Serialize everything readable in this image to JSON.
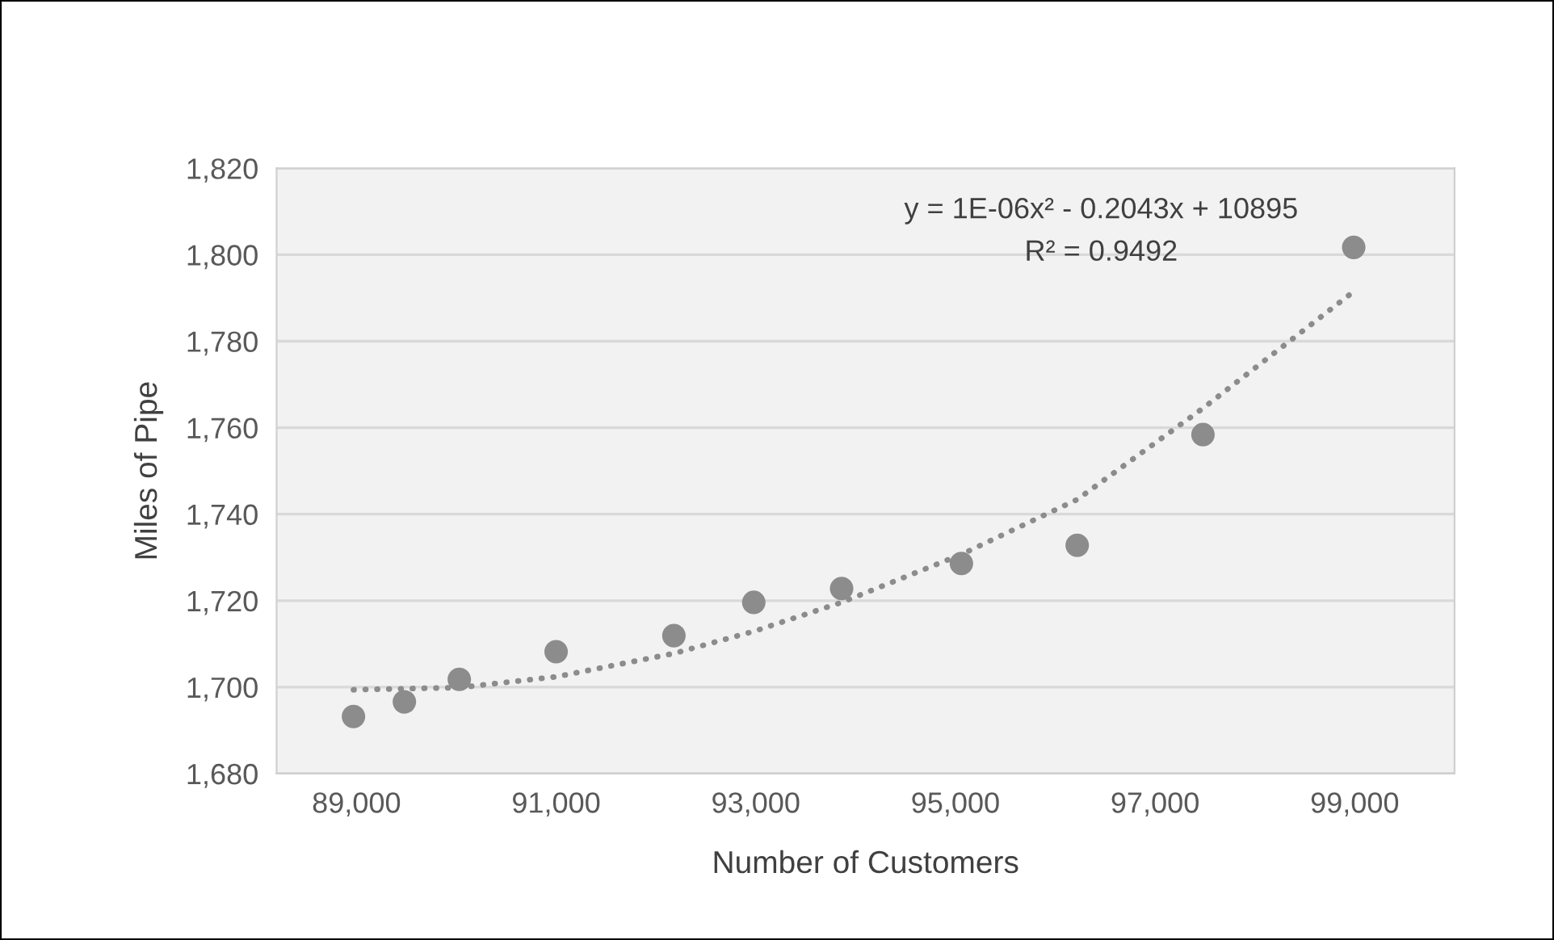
{
  "chart_data": {
    "type": "scatter",
    "xlabel": "Number of Customers",
    "ylabel": "Miles of Pipe",
    "xlim": [
      88200,
      100000
    ],
    "xticks": [
      {
        "value": 89000,
        "label": "89,000"
      },
      {
        "value": 91000,
        "label": "91,000"
      },
      {
        "value": 93000,
        "label": "93,000"
      },
      {
        "value": 95000,
        "label": "95,000"
      },
      {
        "value": 97000,
        "label": "97,000"
      },
      {
        "value": 99000,
        "label": "99,000"
      }
    ],
    "ylim": [
      1680,
      1820
    ],
    "yticks": [
      {
        "value": 1680,
        "label": "1,680"
      },
      {
        "value": 1700,
        "label": "1,700"
      },
      {
        "value": 1720,
        "label": "1,720"
      },
      {
        "value": 1740,
        "label": "1,740"
      },
      {
        "value": 1760,
        "label": "1,760"
      },
      {
        "value": 1780,
        "label": "1,780"
      },
      {
        "value": 1800,
        "label": "1,800"
      },
      {
        "value": 1820,
        "label": "1,820"
      }
    ],
    "grid": "y",
    "series": [
      {
        "color": "#8c8c8c",
        "marker": "circle",
        "x": [
          88970,
          89480,
          90030,
          91000,
          92180,
          92980,
          93860,
          95060,
          96220,
          97480,
          98990
        ],
        "values": [
          1693.2,
          1696.6,
          1701.8,
          1708.2,
          1711.9,
          1719.6,
          1722.8,
          1728.6,
          1732.8,
          1758.4,
          1801.7
        ]
      },
      {
        "type": "line",
        "color": "#8c8c8c",
        "line_style": "dotted",
        "marker": "none",
        "x": [
          88970,
          90030,
          91000,
          92180,
          92980,
          93860,
          95060,
          96220,
          97480,
          98990
        ],
        "values": [
          1699.4,
          1699.9,
          1702.4,
          1707.8,
          1712.9,
          1719.6,
          1730.7,
          1743.4,
          1764.5,
          1791.5
        ]
      }
    ],
    "annotations": [
      "y = 1E-06x² - 0.2043x + 10895",
      "R² = 0.9492"
    ]
  }
}
